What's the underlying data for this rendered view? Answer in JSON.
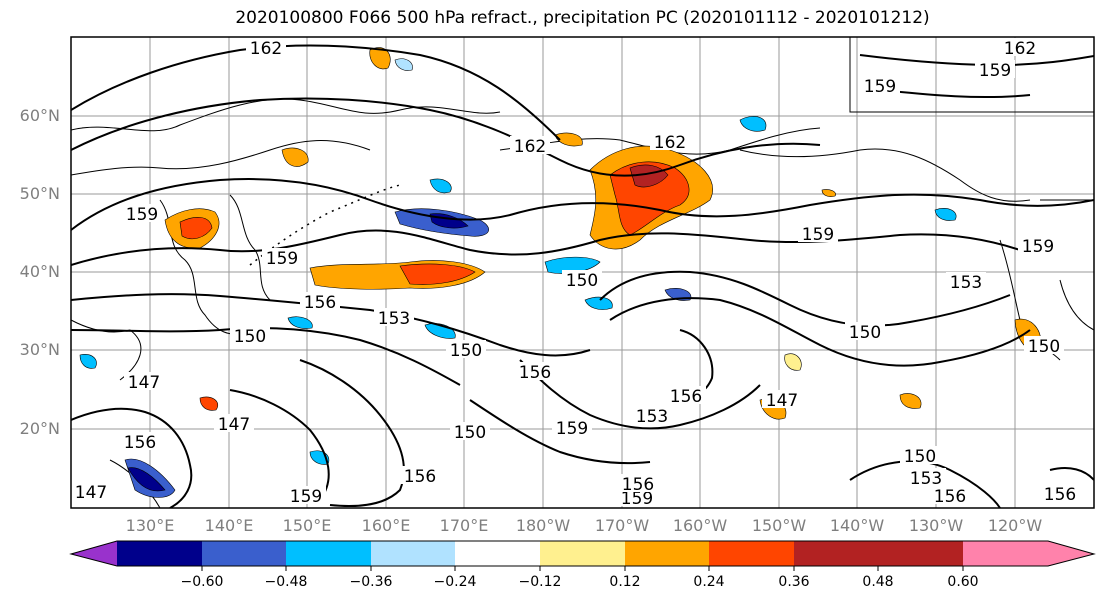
{
  "title": "2020100800 F066 500 hPa refract., precipitation PC (2020101112 - 2020101212)",
  "latitude_labels": [
    "60°N",
    "50°N",
    "40°N",
    "30°N",
    "20°N"
  ],
  "longitude_labels": [
    "130°E",
    "140°E",
    "150°E",
    "160°E",
    "170°E",
    "180°W",
    "170°W",
    "160°W",
    "150°W",
    "140°W",
    "130°W",
    "120°W"
  ],
  "contour_labels": [
    {
      "text": "162"
    },
    {
      "text": "162"
    },
    {
      "text": "162"
    },
    {
      "text": "162"
    },
    {
      "text": "159"
    },
    {
      "text": "159"
    },
    {
      "text": "159"
    },
    {
      "text": "159"
    },
    {
      "text": "159"
    },
    {
      "text": "159"
    },
    {
      "text": "159"
    },
    {
      "text": "159"
    },
    {
      "text": "159"
    },
    {
      "text": "156"
    },
    {
      "text": "156"
    },
    {
      "text": "156"
    },
    {
      "text": "156"
    },
    {
      "text": "156"
    },
    {
      "text": "156"
    },
    {
      "text": "156"
    },
    {
      "text": "156"
    },
    {
      "text": "153"
    },
    {
      "text": "153"
    },
    {
      "text": "153"
    },
    {
      "text": "153"
    },
    {
      "text": "150"
    },
    {
      "text": "150"
    },
    {
      "text": "150"
    },
    {
      "text": "150"
    },
    {
      "text": "150"
    },
    {
      "text": "150"
    },
    {
      "text": "150"
    },
    {
      "text": "147"
    },
    {
      "text": "147"
    },
    {
      "text": "147"
    },
    {
      "text": "147"
    }
  ],
  "colorbar": {
    "tick_labels": [
      "−0.60",
      "−0.48",
      "−0.36",
      "−0.24",
      "−0.12",
      "0.12",
      "0.24",
      "0.36",
      "0.48",
      "0.60"
    ],
    "colors": [
      "#9932cc",
      "#00008b",
      "#3a5fcd",
      "#00bfff",
      "#b0e2ff",
      "#ffffff",
      "#fff08f",
      "#ffa500",
      "#ff4500",
      "#b22222",
      "#ff82ab"
    ]
  }
}
